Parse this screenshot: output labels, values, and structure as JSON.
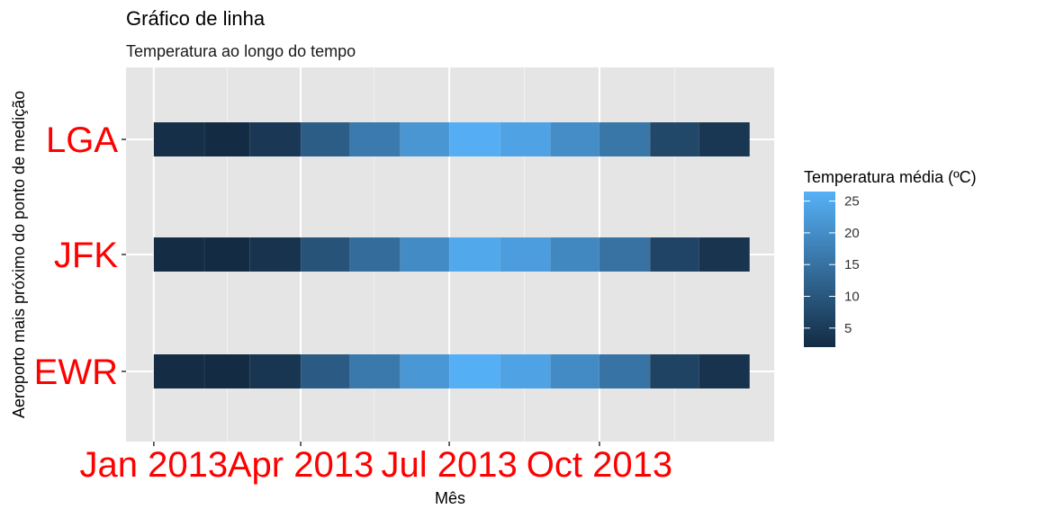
{
  "chart_data": {
    "type": "heatmap",
    "title": "Gráfico de linha",
    "subtitle": "Temperatura ao longo do tempo",
    "xlabel": "Mês",
    "ylabel": "Aeroporto mais próximo do ponto de medição",
    "x_tick_labels": [
      "Jan 2013",
      "Apr 2013",
      "Jul 2013",
      "Oct 2013"
    ],
    "x_tick_dates": [
      "2013-01-01",
      "2013-04-01",
      "2013-07-01",
      "2013-10-01"
    ],
    "x_minor_dates": [
      "2013-02-15",
      "2013-05-16",
      "2013-08-16",
      "2013-11-16"
    ],
    "xlim": [
      "2012-12-15",
      "2014-01-16"
    ],
    "months": [
      "2013-01",
      "2013-02",
      "2013-03",
      "2013-04",
      "2013-05",
      "2013-06",
      "2013-07",
      "2013-08",
      "2013-09",
      "2013-10",
      "2013-11",
      "2013-12"
    ],
    "airports": [
      "EWR",
      "JFK",
      "LGA"
    ],
    "values": {
      "EWR": [
        2.3,
        1.2,
        3.9,
        10.8,
        16.3,
        21.8,
        26.2,
        23.9,
        19.5,
        15.2,
        6.4,
        3.4
      ],
      "JFK": [
        2.2,
        1.2,
        3.5,
        9.4,
        14.0,
        19.6,
        24.8,
        22.9,
        19.0,
        15.0,
        6.6,
        3.7
      ],
      "LGA": [
        2.7,
        1.7,
        4.4,
        11.1,
        16.5,
        21.6,
        26.0,
        24.0,
        19.9,
        15.9,
        7.2,
        4.1
      ]
    },
    "legend": {
      "title": "Temperatura média (ºC)",
      "ticks": [
        5,
        10,
        15,
        20,
        25
      ],
      "range": [
        2,
        26.5
      ],
      "placement": "right"
    },
    "color_low": "#132B43",
    "color_high": "#56B1F7",
    "tick_label_color": "#ff0000",
    "panel_color": "#e5e5e5",
    "grid": true
  }
}
